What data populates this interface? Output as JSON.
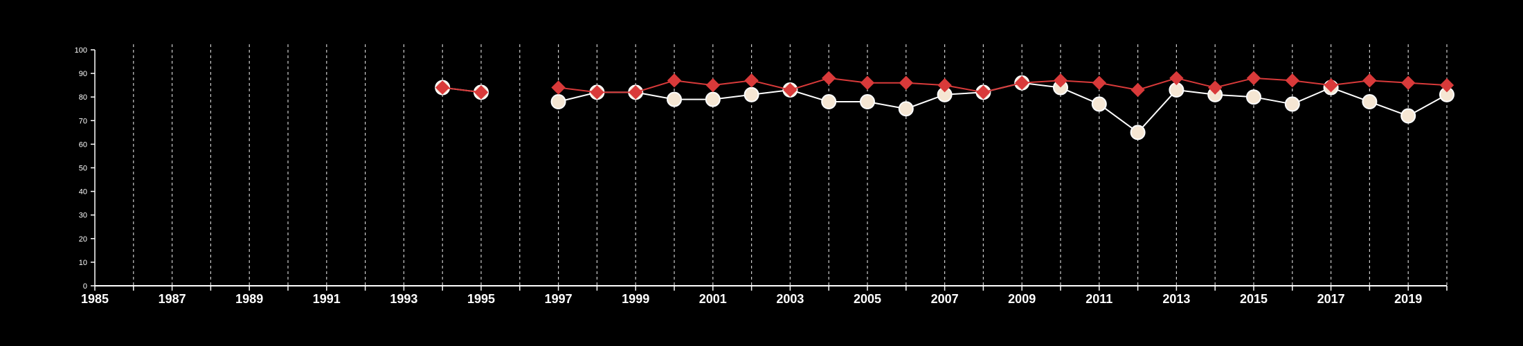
{
  "chart_data": {
    "type": "line",
    "title": "",
    "xlabel": "",
    "ylabel": "",
    "xlim": [
      1985,
      2020
    ],
    "ylim": [
      0,
      100
    ],
    "x_ticks": [
      1985,
      1987,
      1989,
      1991,
      1993,
      1995,
      1997,
      1999,
      2001,
      2003,
      2005,
      2007,
      2009,
      2011,
      2013,
      2015,
      2017,
      2019
    ],
    "y_ticks": [
      0,
      10,
      20,
      30,
      40,
      50,
      60,
      70,
      80,
      90,
      100
    ],
    "grid": "vertical dashed lines at each year",
    "legend": "none",
    "series": [
      {
        "marker": "circle",
        "color": "#ffffff",
        "fill": "#f5e6d3",
        "points": [
          {
            "x": 1994,
            "y": 84
          },
          {
            "x": 1995,
            "y": 82
          },
          {
            "x": 1997,
            "y": 78
          },
          {
            "x": 1998,
            "y": 82
          },
          {
            "x": 1999,
            "y": 82
          },
          {
            "x": 2000,
            "y": 79
          },
          {
            "x": 2001,
            "y": 79
          },
          {
            "x": 2002,
            "y": 81
          },
          {
            "x": 2003,
            "y": 83
          },
          {
            "x": 2004,
            "y": 78
          },
          {
            "x": 2005,
            "y": 78
          },
          {
            "x": 2006,
            "y": 75
          },
          {
            "x": 2007,
            "y": 81
          },
          {
            "x": 2008,
            "y": 82
          },
          {
            "x": 2009,
            "y": 86
          },
          {
            "x": 2010,
            "y": 84
          },
          {
            "x": 2011,
            "y": 77
          },
          {
            "x": 2012,
            "y": 65
          },
          {
            "x": 2013,
            "y": 83
          },
          {
            "x": 2014,
            "y": 81
          },
          {
            "x": 2015,
            "y": 80
          },
          {
            "x": 2016,
            "y": 77
          },
          {
            "x": 2017,
            "y": 84
          },
          {
            "x": 2018,
            "y": 78
          },
          {
            "x": 2019,
            "y": 72
          },
          {
            "x": 2020,
            "y": 81
          }
        ]
      },
      {
        "marker": "diamond",
        "color": "#d93a3a",
        "fill": "#d93a3a",
        "points": [
          {
            "x": 1994,
            "y": 84
          },
          {
            "x": 1995,
            "y": 82
          },
          {
            "x": 1997,
            "y": 84
          },
          {
            "x": 1998,
            "y": 82
          },
          {
            "x": 1999,
            "y": 82
          },
          {
            "x": 2000,
            "y": 87
          },
          {
            "x": 2001,
            "y": 85
          },
          {
            "x": 2002,
            "y": 87
          },
          {
            "x": 2003,
            "y": 83
          },
          {
            "x": 2004,
            "y": 88
          },
          {
            "x": 2005,
            "y": 86
          },
          {
            "x": 2006,
            "y": 86
          },
          {
            "x": 2007,
            "y": 85
          },
          {
            "x": 2008,
            "y": 82
          },
          {
            "x": 2009,
            "y": 86
          },
          {
            "x": 2010,
            "y": 87
          },
          {
            "x": 2011,
            "y": 86
          },
          {
            "x": 2012,
            "y": 83
          },
          {
            "x": 2013,
            "y": 88
          },
          {
            "x": 2014,
            "y": 84
          },
          {
            "x": 2015,
            "y": 88
          },
          {
            "x": 2016,
            "y": 87
          },
          {
            "x": 2017,
            "y": 85
          },
          {
            "x": 2018,
            "y": 87
          },
          {
            "x": 2019,
            "y": 86
          },
          {
            "x": 2020,
            "y": 85
          }
        ]
      }
    ],
    "colors": {
      "background": "#000000",
      "axis": "#ffffff",
      "grid": "#cfcfcf"
    }
  }
}
